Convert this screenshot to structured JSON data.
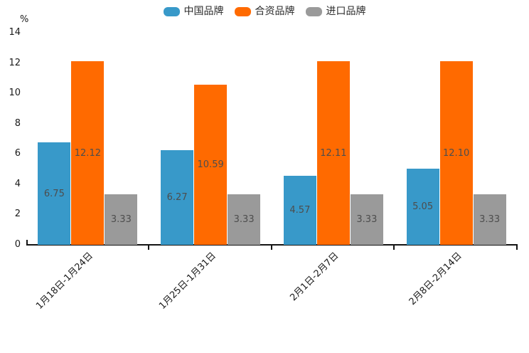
{
  "chart_data": {
    "type": "bar",
    "title": "",
    "unit_label": "%",
    "categories": [
      "1月18日-1月24日",
      "1月25日-1月31日",
      "2月1日-2月7日",
      "2月8日-2月14日"
    ],
    "series": [
      {
        "name": "中国品牌",
        "color": "#3899c9",
        "values": [
          6.75,
          6.27,
          4.57,
          5.05
        ]
      },
      {
        "name": "合资品牌",
        "color": "#ff6a00",
        "values": [
          12.12,
          10.59,
          12.11,
          12.1
        ]
      },
      {
        "name": "进口品牌",
        "color": "#9a9a9a",
        "values": [
          3.33,
          3.33,
          3.33,
          3.33
        ]
      }
    ],
    "value_labels_decimals": 2,
    "value_label_position": "inside-center",
    "ylim": [
      0,
      14
    ],
    "yticks": [
      0,
      2,
      4,
      6,
      8,
      10,
      12,
      14
    ],
    "grid": false,
    "legend_position": "top-center",
    "xlabel_rotation_deg": 45
  },
  "colors": {
    "axis_line": "#141414",
    "axis_tick_label": "#1a1a1a",
    "bar_value_label": "#4d4d4d",
    "background": "#ffffff"
  }
}
